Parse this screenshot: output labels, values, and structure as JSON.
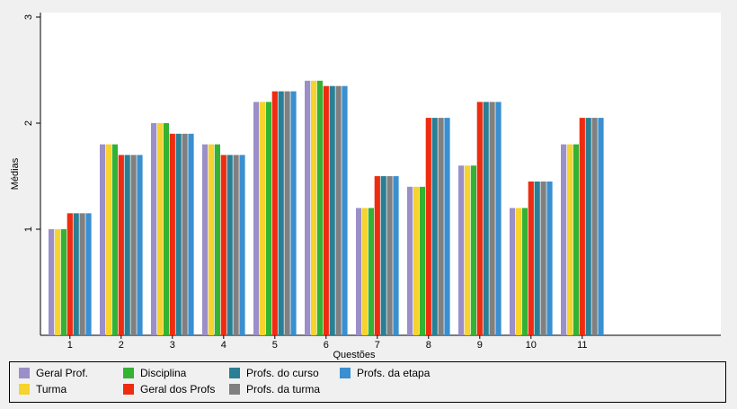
{
  "chart_data": {
    "type": "bar",
    "xlabel": "Questões",
    "ylabel": "Médias",
    "ylim": [
      0,
      3
    ],
    "yticks": [
      "1",
      "2",
      "3"
    ],
    "grid": false,
    "legend_position": "bottom",
    "categories": [
      "1",
      "2",
      "3",
      "4",
      "5",
      "6",
      "7",
      "8",
      "9",
      "10",
      "11"
    ],
    "series": [
      {
        "name": "Geral Prof.",
        "color": "#9b8fc9",
        "values": [
          1.0,
          1.8,
          2.0,
          1.8,
          2.2,
          2.4,
          1.2,
          1.4,
          1.6,
          1.2,
          1.8
        ]
      },
      {
        "name": "Turma",
        "color": "#f6d32d",
        "values": [
          1.0,
          1.8,
          2.0,
          1.8,
          2.2,
          2.4,
          1.2,
          1.4,
          1.6,
          1.2,
          1.8
        ]
      },
      {
        "name": "Disciplina",
        "color": "#33b233",
        "values": [
          1.0,
          1.8,
          2.0,
          1.8,
          2.2,
          2.4,
          1.2,
          1.4,
          1.6,
          1.2,
          1.8
        ]
      },
      {
        "name": "Geral dos Profs",
        "color": "#ee2c10",
        "values": [
          1.15,
          1.7,
          1.9,
          1.7,
          2.3,
          2.35,
          1.5,
          2.05,
          2.2,
          1.45,
          2.05
        ]
      },
      {
        "name": "Profs. do curso",
        "color": "#2a7f95",
        "values": [
          1.15,
          1.7,
          1.9,
          1.7,
          2.3,
          2.35,
          1.5,
          2.05,
          2.2,
          1.45,
          2.05
        ]
      },
      {
        "name": "Profs. da turma",
        "color": "#808080",
        "values": [
          1.15,
          1.7,
          1.9,
          1.7,
          2.3,
          2.35,
          1.5,
          2.05,
          2.2,
          1.45,
          2.05
        ]
      },
      {
        "name": "Profs. da etapa",
        "color": "#3a8fd0",
        "values": [
          1.15,
          1.7,
          1.9,
          1.7,
          2.3,
          2.35,
          1.5,
          2.05,
          2.2,
          1.45,
          2.05
        ]
      }
    ]
  }
}
